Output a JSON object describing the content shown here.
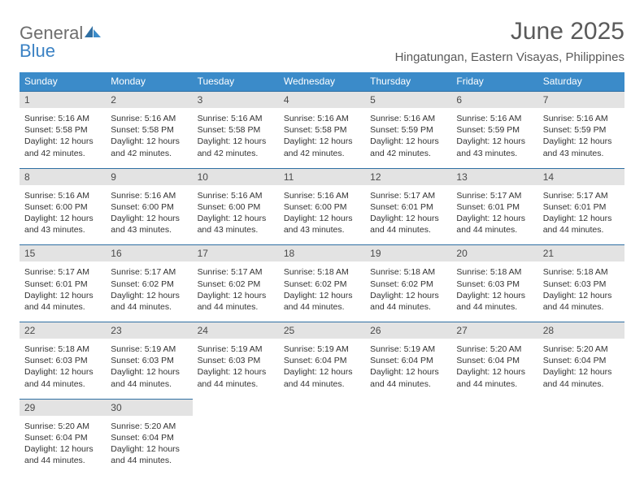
{
  "colors": {
    "header_bg": "#3b8bc9",
    "daynum_bg": "#e3e3e3",
    "daynum_border": "#2f6fa3",
    "text": "#333333",
    "muted": "#5a5a5a",
    "logo_gray": "#6d6d6d",
    "logo_blue": "#3b82c4",
    "page_bg": "#ffffff"
  },
  "typography": {
    "title_fontsize": 30,
    "location_fontsize": 15,
    "dow_fontsize": 12,
    "body_fontsize": 10.5,
    "logo_fontsize": 22
  },
  "logo": {
    "general": "General",
    "blue": "Blue"
  },
  "title": "June 2025",
  "location": "Hingatungan, Eastern Visayas, Philippines",
  "dow": [
    "Sunday",
    "Monday",
    "Tuesday",
    "Wednesday",
    "Thursday",
    "Friday",
    "Saturday"
  ],
  "weeks": [
    [
      {
        "num": "1",
        "sunrise": "Sunrise: 5:16 AM",
        "sunset": "Sunset: 5:58 PM",
        "day1": "Daylight: 12 hours",
        "day2": "and 42 minutes."
      },
      {
        "num": "2",
        "sunrise": "Sunrise: 5:16 AM",
        "sunset": "Sunset: 5:58 PM",
        "day1": "Daylight: 12 hours",
        "day2": "and 42 minutes."
      },
      {
        "num": "3",
        "sunrise": "Sunrise: 5:16 AM",
        "sunset": "Sunset: 5:58 PM",
        "day1": "Daylight: 12 hours",
        "day2": "and 42 minutes."
      },
      {
        "num": "4",
        "sunrise": "Sunrise: 5:16 AM",
        "sunset": "Sunset: 5:58 PM",
        "day1": "Daylight: 12 hours",
        "day2": "and 42 minutes."
      },
      {
        "num": "5",
        "sunrise": "Sunrise: 5:16 AM",
        "sunset": "Sunset: 5:59 PM",
        "day1": "Daylight: 12 hours",
        "day2": "and 42 minutes."
      },
      {
        "num": "6",
        "sunrise": "Sunrise: 5:16 AM",
        "sunset": "Sunset: 5:59 PM",
        "day1": "Daylight: 12 hours",
        "day2": "and 43 minutes."
      },
      {
        "num": "7",
        "sunrise": "Sunrise: 5:16 AM",
        "sunset": "Sunset: 5:59 PM",
        "day1": "Daylight: 12 hours",
        "day2": "and 43 minutes."
      }
    ],
    [
      {
        "num": "8",
        "sunrise": "Sunrise: 5:16 AM",
        "sunset": "Sunset: 6:00 PM",
        "day1": "Daylight: 12 hours",
        "day2": "and 43 minutes."
      },
      {
        "num": "9",
        "sunrise": "Sunrise: 5:16 AM",
        "sunset": "Sunset: 6:00 PM",
        "day1": "Daylight: 12 hours",
        "day2": "and 43 minutes."
      },
      {
        "num": "10",
        "sunrise": "Sunrise: 5:16 AM",
        "sunset": "Sunset: 6:00 PM",
        "day1": "Daylight: 12 hours",
        "day2": "and 43 minutes."
      },
      {
        "num": "11",
        "sunrise": "Sunrise: 5:16 AM",
        "sunset": "Sunset: 6:00 PM",
        "day1": "Daylight: 12 hours",
        "day2": "and 43 minutes."
      },
      {
        "num": "12",
        "sunrise": "Sunrise: 5:17 AM",
        "sunset": "Sunset: 6:01 PM",
        "day1": "Daylight: 12 hours",
        "day2": "and 44 minutes."
      },
      {
        "num": "13",
        "sunrise": "Sunrise: 5:17 AM",
        "sunset": "Sunset: 6:01 PM",
        "day1": "Daylight: 12 hours",
        "day2": "and 44 minutes."
      },
      {
        "num": "14",
        "sunrise": "Sunrise: 5:17 AM",
        "sunset": "Sunset: 6:01 PM",
        "day1": "Daylight: 12 hours",
        "day2": "and 44 minutes."
      }
    ],
    [
      {
        "num": "15",
        "sunrise": "Sunrise: 5:17 AM",
        "sunset": "Sunset: 6:01 PM",
        "day1": "Daylight: 12 hours",
        "day2": "and 44 minutes."
      },
      {
        "num": "16",
        "sunrise": "Sunrise: 5:17 AM",
        "sunset": "Sunset: 6:02 PM",
        "day1": "Daylight: 12 hours",
        "day2": "and 44 minutes."
      },
      {
        "num": "17",
        "sunrise": "Sunrise: 5:17 AM",
        "sunset": "Sunset: 6:02 PM",
        "day1": "Daylight: 12 hours",
        "day2": "and 44 minutes."
      },
      {
        "num": "18",
        "sunrise": "Sunrise: 5:18 AM",
        "sunset": "Sunset: 6:02 PM",
        "day1": "Daylight: 12 hours",
        "day2": "and 44 minutes."
      },
      {
        "num": "19",
        "sunrise": "Sunrise: 5:18 AM",
        "sunset": "Sunset: 6:02 PM",
        "day1": "Daylight: 12 hours",
        "day2": "and 44 minutes."
      },
      {
        "num": "20",
        "sunrise": "Sunrise: 5:18 AM",
        "sunset": "Sunset: 6:03 PM",
        "day1": "Daylight: 12 hours",
        "day2": "and 44 minutes."
      },
      {
        "num": "21",
        "sunrise": "Sunrise: 5:18 AM",
        "sunset": "Sunset: 6:03 PM",
        "day1": "Daylight: 12 hours",
        "day2": "and 44 minutes."
      }
    ],
    [
      {
        "num": "22",
        "sunrise": "Sunrise: 5:18 AM",
        "sunset": "Sunset: 6:03 PM",
        "day1": "Daylight: 12 hours",
        "day2": "and 44 minutes."
      },
      {
        "num": "23",
        "sunrise": "Sunrise: 5:19 AM",
        "sunset": "Sunset: 6:03 PM",
        "day1": "Daylight: 12 hours",
        "day2": "and 44 minutes."
      },
      {
        "num": "24",
        "sunrise": "Sunrise: 5:19 AM",
        "sunset": "Sunset: 6:03 PM",
        "day1": "Daylight: 12 hours",
        "day2": "and 44 minutes."
      },
      {
        "num": "25",
        "sunrise": "Sunrise: 5:19 AM",
        "sunset": "Sunset: 6:04 PM",
        "day1": "Daylight: 12 hours",
        "day2": "and 44 minutes."
      },
      {
        "num": "26",
        "sunrise": "Sunrise: 5:19 AM",
        "sunset": "Sunset: 6:04 PM",
        "day1": "Daylight: 12 hours",
        "day2": "and 44 minutes."
      },
      {
        "num": "27",
        "sunrise": "Sunrise: 5:20 AM",
        "sunset": "Sunset: 6:04 PM",
        "day1": "Daylight: 12 hours",
        "day2": "and 44 minutes."
      },
      {
        "num": "28",
        "sunrise": "Sunrise: 5:20 AM",
        "sunset": "Sunset: 6:04 PM",
        "day1": "Daylight: 12 hours",
        "day2": "and 44 minutes."
      }
    ],
    [
      {
        "num": "29",
        "sunrise": "Sunrise: 5:20 AM",
        "sunset": "Sunset: 6:04 PM",
        "day1": "Daylight: 12 hours",
        "day2": "and 44 minutes."
      },
      {
        "num": "30",
        "sunrise": "Sunrise: 5:20 AM",
        "sunset": "Sunset: 6:04 PM",
        "day1": "Daylight: 12 hours",
        "day2": "and 44 minutes."
      },
      null,
      null,
      null,
      null,
      null
    ]
  ]
}
